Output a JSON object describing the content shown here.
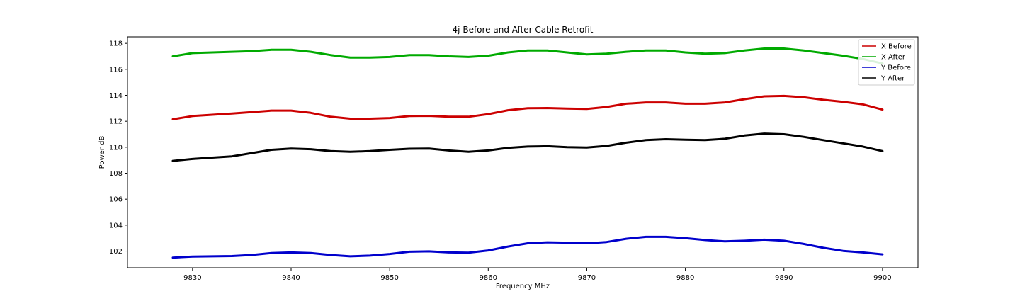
{
  "chart_data": {
    "type": "line",
    "title": "4j Before and After Cable Retrofit",
    "xlabel": "Frequency MHz",
    "ylabel": "Power dB",
    "xlim": [
      9823.4,
      9903.6
    ],
    "ylim": [
      100.72,
      118.5
    ],
    "xticks": [
      9830,
      9840,
      9850,
      9860,
      9870,
      9880,
      9890,
      9900
    ],
    "yticks": [
      102,
      104,
      106,
      108,
      110,
      112,
      114,
      116,
      118
    ],
    "grid": false,
    "legend_position": "top-right",
    "x": [
      9828,
      9830,
      9832,
      9834,
      9836,
      9838,
      9840,
      9842,
      9844,
      9846,
      9848,
      9850,
      9852,
      9854,
      9856,
      9858,
      9860,
      9862,
      9864,
      9866,
      9868,
      9870,
      9872,
      9874,
      9876,
      9878,
      9880,
      9882,
      9884,
      9886,
      9888,
      9890,
      9892,
      9894,
      9896,
      9898,
      9900
    ],
    "series": [
      {
        "name": "X Before",
        "color": "#cc0000",
        "values": [
          112.15,
          112.4,
          112.5,
          112.6,
          112.7,
          112.82,
          112.82,
          112.65,
          112.35,
          112.2,
          112.2,
          112.25,
          112.4,
          112.42,
          112.35,
          112.35,
          112.55,
          112.85,
          113.0,
          113.02,
          112.98,
          112.95,
          113.1,
          113.35,
          113.45,
          113.45,
          113.35,
          113.35,
          113.45,
          113.7,
          113.92,
          113.95,
          113.85,
          113.65,
          113.5,
          113.3,
          112.9
        ]
      },
      {
        "name": "X After",
        "color": "#00aa00",
        "values": [
          117.0,
          117.25,
          117.3,
          117.35,
          117.4,
          117.5,
          117.5,
          117.35,
          117.1,
          116.9,
          116.9,
          116.95,
          117.1,
          117.1,
          117.0,
          116.95,
          117.05,
          117.3,
          117.45,
          117.45,
          117.3,
          117.15,
          117.2,
          117.35,
          117.45,
          117.45,
          117.3,
          117.2,
          117.25,
          117.45,
          117.6,
          117.6,
          117.45,
          117.25,
          117.05,
          116.8,
          116.45
        ]
      },
      {
        "name": "Y Before",
        "color": "#0000cc",
        "values": [
          101.5,
          101.58,
          101.6,
          101.62,
          101.7,
          101.85,
          101.9,
          101.85,
          101.7,
          101.6,
          101.65,
          101.78,
          101.95,
          101.98,
          101.9,
          101.88,
          102.05,
          102.35,
          102.6,
          102.68,
          102.65,
          102.6,
          102.7,
          102.95,
          103.1,
          103.1,
          103.0,
          102.85,
          102.75,
          102.8,
          102.88,
          102.8,
          102.55,
          102.25,
          102.02,
          101.9,
          101.75
        ]
      },
      {
        "name": "Y After",
        "color": "#000000",
        "values": [
          108.95,
          109.1,
          109.2,
          109.3,
          109.55,
          109.8,
          109.9,
          109.85,
          109.7,
          109.65,
          109.7,
          109.8,
          109.88,
          109.9,
          109.75,
          109.65,
          109.75,
          109.95,
          110.05,
          110.08,
          110.0,
          109.98,
          110.1,
          110.35,
          110.55,
          110.62,
          110.58,
          110.55,
          110.65,
          110.9,
          111.05,
          111.0,
          110.8,
          110.55,
          110.3,
          110.05,
          109.7
        ]
      }
    ]
  }
}
